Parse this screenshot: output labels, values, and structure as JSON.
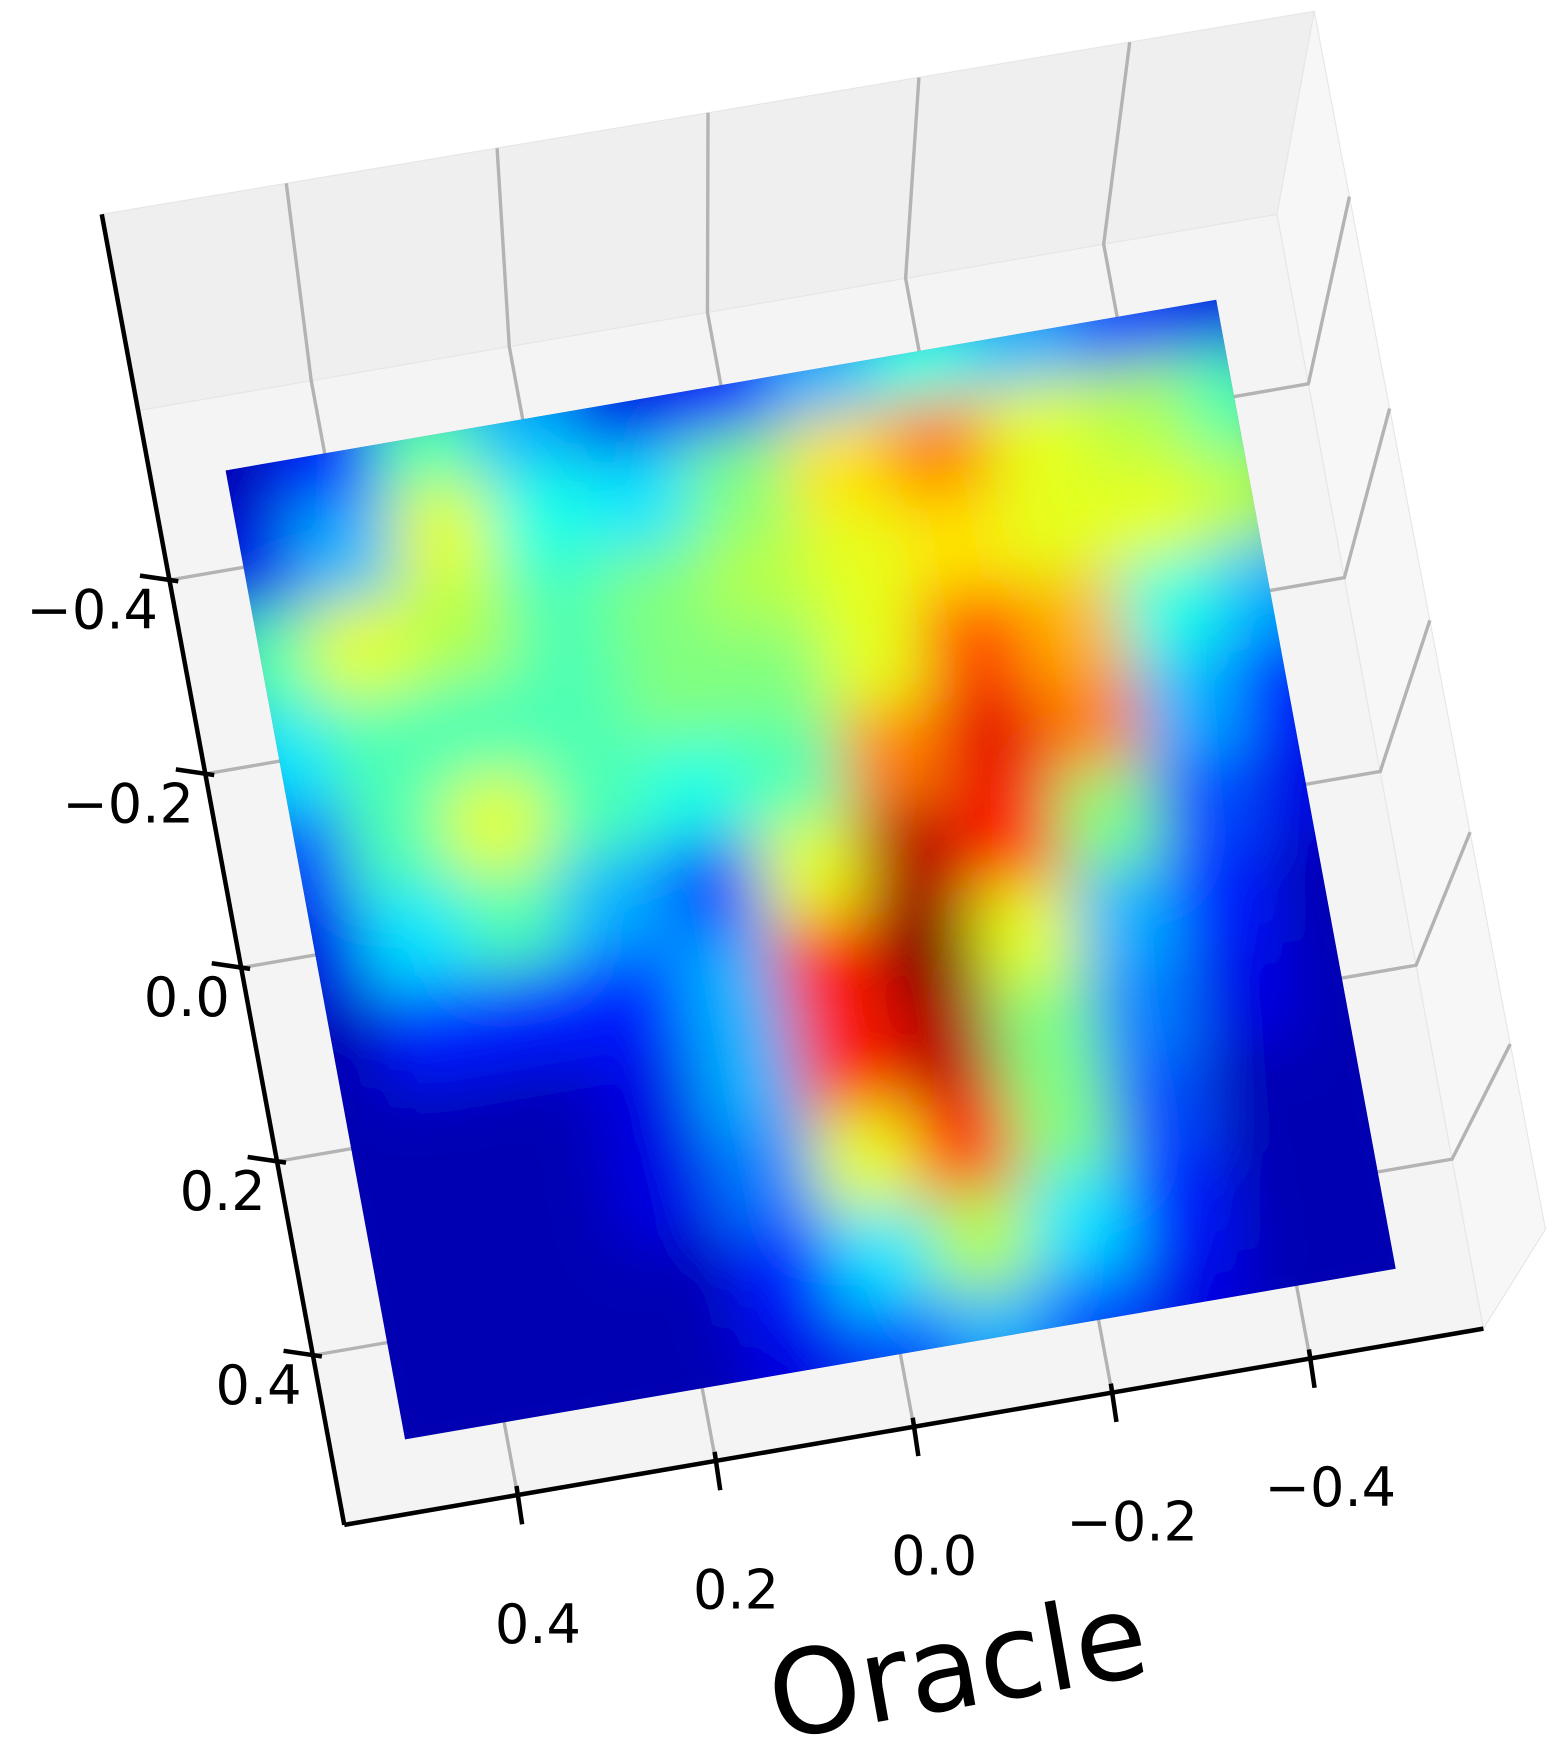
{
  "chart_data": {
    "type": "surface3d",
    "xlabel": "Oracle",
    "colormap": "jet",
    "xlim": [
      0.575,
      -0.575
    ],
    "ylim": [
      -0.575,
      0.575
    ],
    "xticks": [
      0.4,
      0.2,
      {
        "value": 0,
        "label": "0.0"
      },
      {
        "value": -0.2,
        "label": "−0.2"
      },
      {
        "value": -0.4,
        "label": "−0.4"
      }
    ],
    "yticks": [
      {
        "value": -0.4,
        "label": "−0.4"
      },
      {
        "value": -0.2,
        "label": "−0.2"
      },
      {
        "value": 0,
        "label": "0.0"
      },
      0.2,
      0.4
    ],
    "grid": true,
    "surface": {
      "x": [
        0.5,
        0.4,
        0.3,
        0.2,
        0.1,
        0,
        -0.1,
        -0.2,
        -0.3,
        -0.4,
        -0.5
      ],
      "y": [
        -0.5,
        -0.4,
        -0.3,
        -0.2,
        -0.1,
        0,
        0.1,
        0.2,
        0.3,
        0.4,
        0.5
      ],
      "z": [
        [
          0.05,
          0.15,
          0.45,
          0.3,
          0.1,
          0.15,
          0.3,
          0.4,
          0.3,
          0.2,
          0.1
        ],
        [
          0.1,
          0.3,
          0.6,
          0.4,
          0.35,
          0.5,
          0.65,
          0.75,
          0.6,
          0.55,
          0.45
        ],
        [
          0.45,
          0.6,
          0.55,
          0.45,
          0.5,
          0.55,
          0.6,
          0.65,
          0.6,
          0.6,
          0.55
        ],
        [
          0.35,
          0.45,
          0.45,
          0.45,
          0.5,
          0.5,
          0.6,
          0.8,
          0.7,
          0.4,
          0.3
        ],
        [
          0.2,
          0.45,
          0.6,
          0.45,
          0.4,
          0.45,
          0.75,
          0.9,
          0.75,
          0.3,
          0.15
        ],
        [
          0.1,
          0.35,
          0.45,
          0.3,
          0.2,
          0.6,
          0.95,
          0.85,
          0.5,
          0.2,
          0.1
        ],
        [
          0.05,
          0.15,
          0.15,
          0.15,
          0.3,
          0.85,
          1.0,
          0.6,
          0.3,
          0.15,
          0.05
        ],
        [
          0.05,
          0.05,
          0.05,
          0.1,
          0.3,
          0.85,
          0.95,
          0.5,
          0.25,
          0.1,
          0.05
        ],
        [
          0.05,
          0.05,
          0.05,
          0.1,
          0.25,
          0.6,
          0.85,
          0.5,
          0.2,
          0.05,
          0.05
        ],
        [
          0.05,
          0.05,
          0.05,
          0.05,
          0.15,
          0.35,
          0.55,
          0.35,
          0.15,
          0.05,
          0.05
        ],
        [
          0.05,
          0.05,
          0.05,
          0.05,
          0.1,
          0.2,
          0.3,
          0.2,
          0.1,
          0.05,
          0.05
        ]
      ]
    }
  }
}
